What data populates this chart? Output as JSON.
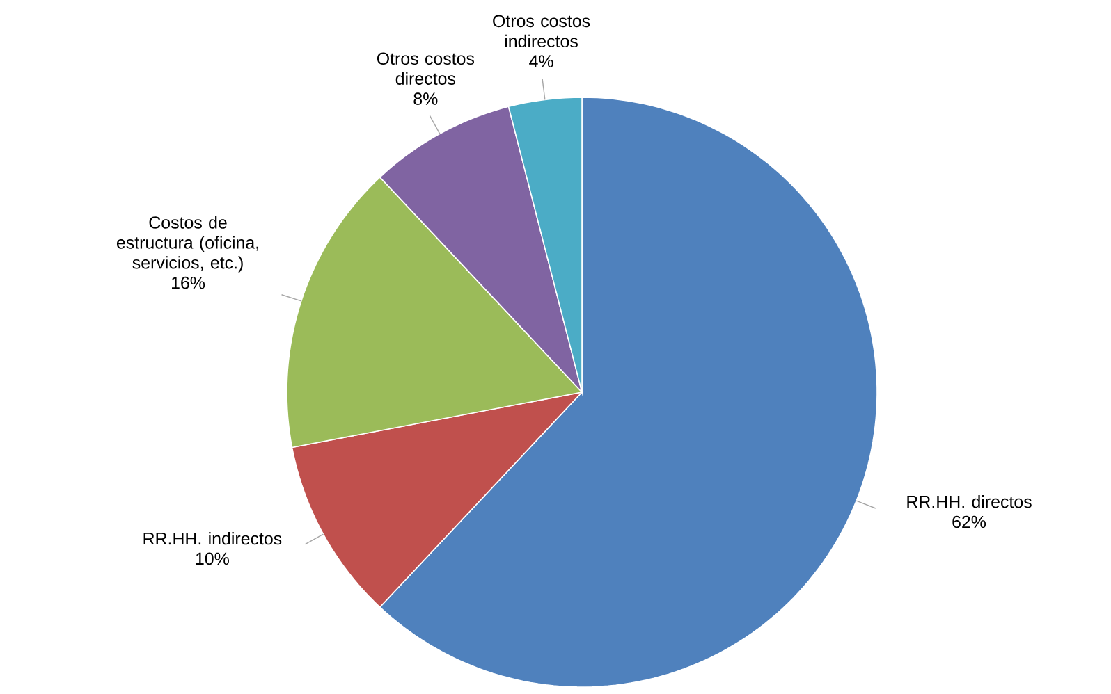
{
  "chart_data": {
    "type": "pie",
    "categories": [
      "RR.HH. directos",
      "RR.HH. indirectos",
      "Costos de estructura (oficina, servicios, etc.)",
      "Otros costos directos",
      "Otros costos indirectos"
    ],
    "values": [
      62,
      10,
      16,
      8,
      4
    ],
    "value_labels": [
      "62%",
      "10%",
      "16%",
      "8%",
      "4%"
    ],
    "colors": [
      "#4f81bd",
      "#c0504d",
      "#9bbb59",
      "#8064a2",
      "#4bacc6"
    ]
  }
}
